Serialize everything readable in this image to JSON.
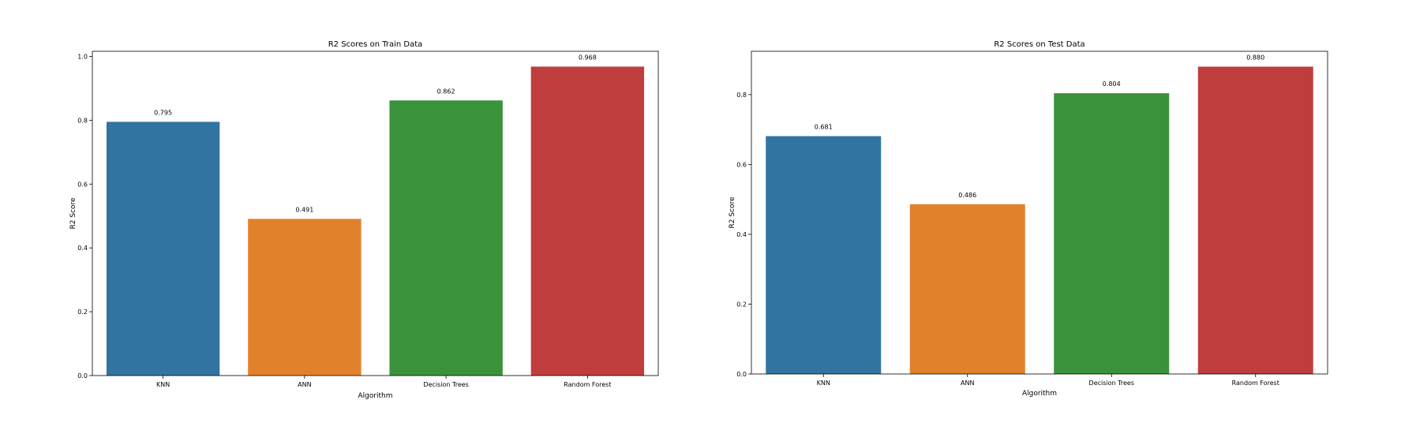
{
  "chart_data": [
    {
      "type": "bar",
      "title": "R2 Scores on Train Data",
      "xlabel": "Algorithm",
      "ylabel": "R2 Score",
      "categories": [
        "KNN",
        "ANN",
        "Decision Trees",
        "Random Forest"
      ],
      "values": [
        0.795,
        0.491,
        0.862,
        0.968
      ],
      "value_labels": [
        "0.795",
        "0.491",
        "0.862",
        "0.968"
      ],
      "colors": [
        "#3274a1",
        "#e1812c",
        "#3a923a",
        "#c03d3e"
      ],
      "ylim": [
        0,
        1.016
      ],
      "yticks": [
        0.0,
        0.2,
        0.4,
        0.6,
        0.8,
        1.0
      ],
      "ytick_labels": [
        "0.0",
        "0.2",
        "0.4",
        "0.6",
        "0.8",
        "1.0"
      ],
      "grid": false,
      "legend": "none"
    },
    {
      "type": "bar",
      "title": "R2 Scores on Test Data",
      "xlabel": "Algorithm",
      "ylabel": "R2 Score",
      "categories": [
        "KNN",
        "ANN",
        "Decision Trees",
        "Random Forest"
      ],
      "values": [
        0.681,
        0.486,
        0.804,
        0.88
      ],
      "value_labels": [
        "0.681",
        "0.486",
        "0.804",
        "0.880"
      ],
      "colors": [
        "#3274a1",
        "#e1812c",
        "#3a923a",
        "#c03d3e"
      ],
      "ylim": [
        0,
        0.924
      ],
      "yticks": [
        0.0,
        0.2,
        0.4,
        0.6,
        0.8
      ],
      "ytick_labels": [
        "0.0",
        "0.2",
        "0.4",
        "0.6",
        "0.8"
      ],
      "grid": false,
      "legend": "none"
    }
  ]
}
